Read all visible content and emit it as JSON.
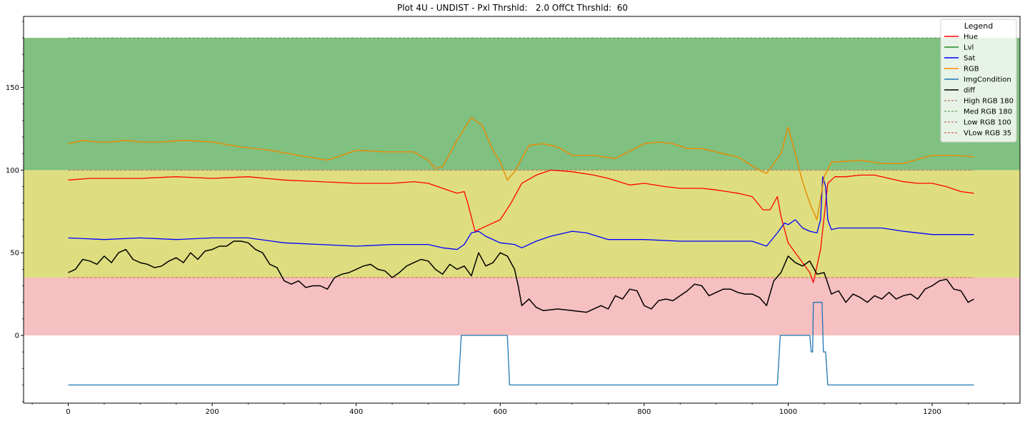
{
  "chart_data": {
    "type": "line",
    "title": "Plot 4U - UNDIST - Pxl Thrshld:   2.0 OffCt Thrshld:  60",
    "xlim": [
      -62,
      1322
    ],
    "ylim": [
      -41,
      193
    ],
    "x_ticks": [
      0,
      200,
      400,
      600,
      800,
      1000,
      1200
    ],
    "y_ticks": [
      0,
      50,
      100,
      150
    ],
    "grid": false,
    "legend_title": "Legend",
    "legend_placement": "top-right",
    "bands": [
      {
        "from": 100,
        "to": 180,
        "color": "#80c080"
      },
      {
        "from": 35,
        "to": 100,
        "color": "#dede80"
      },
      {
        "from": 0,
        "to": 35,
        "color": "#f6bfc0"
      }
    ],
    "threshold_lines": [
      {
        "name": "High RGB 180",
        "y": 180,
        "color": "#b05050"
      },
      {
        "name": "Med RGB 180",
        "y": 180,
        "color": "#4e8f4e"
      },
      {
        "name": "Low RGB 100",
        "y": 100,
        "color": "#b05050"
      },
      {
        "name": "VLow RGB 35",
        "y": 35,
        "color": "#d04040"
      }
    ],
    "series": [
      {
        "name": "Hue",
        "color": "#ff0000",
        "x": [
          0,
          30,
          60,
          100,
          150,
          200,
          250,
          300,
          350,
          400,
          450,
          480,
          500,
          520,
          540,
          550,
          555,
          565,
          580,
          600,
          615,
          630,
          650,
          670,
          700,
          730,
          750,
          780,
          800,
          830,
          850,
          880,
          900,
          930,
          950,
          965,
          975,
          985,
          990,
          1000,
          1010,
          1020,
          1030,
          1035,
          1045,
          1055,
          1065,
          1080,
          1100,
          1120,
          1140,
          1160,
          1180,
          1200,
          1220,
          1240,
          1258
        ],
        "y": [
          94,
          95,
          95,
          95,
          96,
          95,
          96,
          94,
          93,
          92,
          92,
          93,
          92,
          89,
          86,
          87,
          80,
          63,
          66,
          70,
          80,
          92,
          97,
          100,
          99,
          97,
          95,
          91,
          92,
          90,
          89,
          89,
          88,
          86,
          84,
          76,
          76,
          84,
          72,
          56,
          50,
          44,
          38,
          32,
          52,
          92,
          96,
          96,
          97,
          97,
          95,
          93,
          92,
          92,
          90,
          87,
          86
        ]
      },
      {
        "name": "Lvl",
        "color": "#228b22",
        "x": [
          0,
          20,
          40,
          60,
          80,
          100,
          130,
          160,
          200,
          240,
          280,
          320,
          360,
          400,
          440,
          480,
          500,
          510,
          520,
          540,
          560,
          575,
          590,
          600,
          610,
          620,
          640,
          660,
          680,
          700,
          730,
          760,
          800,
          820,
          840,
          860,
          880,
          900,
          930,
          960,
          970,
          980,
          990,
          1000,
          1010,
          1020,
          1030,
          1040,
          1050,
          1060,
          1070,
          1100,
          1130,
          1160,
          1200,
          1230,
          1258
        ],
        "y": [
          116,
          118,
          117,
          117,
          118,
          117,
          117,
          118,
          117,
          114,
          112,
          109,
          106,
          112,
          111,
          111,
          106,
          101,
          102,
          118,
          132,
          127,
          112,
          105,
          94,
          99,
          115,
          116,
          114,
          109,
          109,
          107,
          116,
          117,
          116,
          113,
          113,
          111,
          108,
          100,
          98,
          104,
          110,
          126,
          110,
          93,
          80,
          70,
          96,
          105,
          105,
          106,
          104,
          104,
          109,
          109,
          108
        ]
      },
      {
        "name": "Sat",
        "color": "#0000ff",
        "x": [
          0,
          50,
          100,
          150,
          200,
          250,
          300,
          350,
          400,
          450,
          500,
          520,
          540,
          550,
          560,
          570,
          580,
          600,
          620,
          630,
          650,
          670,
          700,
          720,
          750,
          800,
          850,
          900,
          950,
          970,
          985,
          995,
          1000,
          1010,
          1020,
          1030,
          1040,
          1045,
          1048,
          1052,
          1055,
          1060,
          1070,
          1080,
          1100,
          1130,
          1160,
          1200,
          1230,
          1258
        ],
        "y": [
          59,
          58,
          59,
          58,
          59,
          59,
          56,
          55,
          54,
          55,
          55,
          53,
          52,
          55,
          62,
          63,
          60,
          56,
          55,
          53,
          57,
          60,
          63,
          62,
          58,
          58,
          57,
          57,
          57,
          54,
          62,
          68,
          67,
          70,
          65,
          63,
          62,
          70,
          96,
          90,
          70,
          64,
          65,
          65,
          65,
          65,
          63,
          61,
          61,
          61
        ]
      },
      {
        "name": "RGB",
        "color": "#ff8c00",
        "x": [
          0,
          20,
          40,
          60,
          80,
          100,
          130,
          160,
          200,
          240,
          280,
          320,
          360,
          400,
          440,
          480,
          500,
          510,
          520,
          540,
          560,
          575,
          590,
          600,
          610,
          620,
          640,
          660,
          680,
          700,
          730,
          760,
          800,
          820,
          840,
          860,
          880,
          900,
          930,
          960,
          970,
          980,
          990,
          1000,
          1010,
          1020,
          1030,
          1040,
          1050,
          1060,
          1070,
          1100,
          1130,
          1160,
          1200,
          1230,
          1258
        ],
        "y": [
          116,
          118,
          117,
          117,
          118,
          117,
          117,
          118,
          117,
          114,
          112,
          109,
          106,
          112,
          111,
          111,
          106,
          101,
          102,
          118,
          132,
          127,
          112,
          105,
          94,
          99,
          115,
          116,
          114,
          109,
          109,
          107,
          116,
          117,
          116,
          113,
          113,
          111,
          108,
          100,
          98,
          104,
          110,
          126,
          110,
          93,
          80,
          70,
          96,
          105,
          105,
          106,
          104,
          104,
          109,
          109,
          108
        ]
      },
      {
        "name": "ImgCondition",
        "color": "#1f77b4",
        "x": [
          0,
          542,
          546,
          610,
          613,
          985,
          989,
          1030,
          1032,
          1034,
          1035,
          1036,
          1047,
          1049,
          1052,
          1055,
          1258
        ],
        "y": [
          -30,
          -30,
          0,
          0,
          -30,
          -30,
          0,
          0,
          -10,
          -10,
          20,
          20,
          20,
          -10,
          -10,
          -30,
          -30
        ]
      },
      {
        "name": "diff",
        "color": "#000000",
        "x": [
          0,
          10,
          20,
          30,
          40,
          50,
          60,
          70,
          80,
          90,
          100,
          110,
          120,
          130,
          140,
          150,
          160,
          170,
          180,
          190,
          200,
          210,
          220,
          230,
          240,
          250,
          260,
          270,
          280,
          290,
          300,
          310,
          320,
          330,
          340,
          350,
          360,
          370,
          380,
          390,
          400,
          410,
          420,
          430,
          440,
          450,
          460,
          470,
          480,
          490,
          500,
          510,
          520,
          530,
          540,
          550,
          560,
          570,
          580,
          590,
          600,
          610,
          620,
          625,
          630,
          640,
          650,
          660,
          680,
          700,
          720,
          740,
          750,
          760,
          770,
          780,
          790,
          800,
          810,
          820,
          830,
          840,
          850,
          860,
          870,
          880,
          890,
          900,
          910,
          920,
          930,
          940,
          950,
          960,
          970,
          980,
          990,
          1000,
          1010,
          1020,
          1030,
          1040,
          1050,
          1060,
          1070,
          1080,
          1090,
          1100,
          1110,
          1120,
          1130,
          1140,
          1150,
          1160,
          1170,
          1180,
          1190,
          1200,
          1210,
          1220,
          1230,
          1240,
          1250,
          1258
        ],
        "y": [
          38,
          40,
          46,
          45,
          43,
          48,
          44,
          50,
          52,
          46,
          44,
          43,
          41,
          42,
          45,
          47,
          44,
          50,
          46,
          51,
          52,
          54,
          54,
          57,
          57,
          56,
          52,
          50,
          43,
          41,
          33,
          31,
          33,
          29,
          30,
          30,
          28,
          35,
          37,
          38,
          40,
          42,
          43,
          40,
          39,
          35,
          38,
          42,
          44,
          46,
          45,
          40,
          37,
          43,
          40,
          42,
          36,
          50,
          42,
          44,
          50,
          48,
          40,
          30,
          18,
          22,
          17,
          15,
          16,
          15,
          14,
          18,
          16,
          24,
          22,
          28,
          27,
          18,
          16,
          21,
          22,
          21,
          24,
          27,
          31,
          30,
          24,
          26,
          28,
          28,
          26,
          25,
          25,
          23,
          18,
          33,
          38,
          48,
          44,
          42,
          45,
          37,
          38,
          25,
          27,
          20,
          25,
          23,
          20,
          24,
          22,
          26,
          22,
          24,
          25,
          22,
          28,
          30,
          33,
          34,
          28,
          27,
          20,
          22
        ]
      }
    ]
  }
}
